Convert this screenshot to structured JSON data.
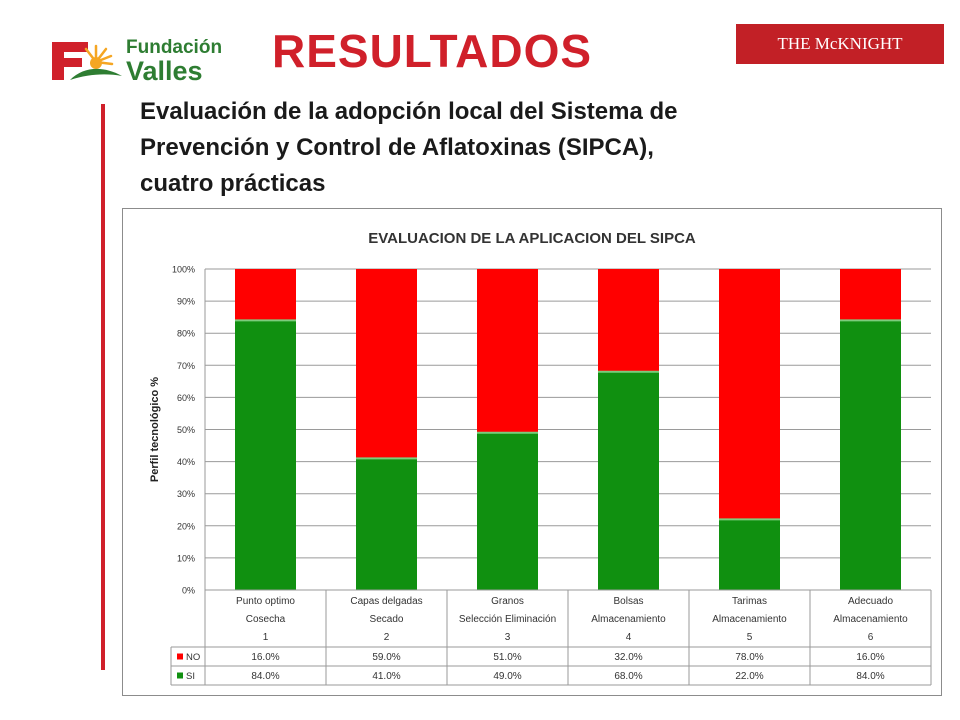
{
  "header": {
    "logo_line1": "Fundación",
    "logo_line2": "Valles",
    "title": "RESULTADOS",
    "partner_logo": "THE McKNIGHT FOUNDATION"
  },
  "subtitle_lines": [
    "Evaluación de la adopción local del Sistema de",
    "Prevención y Control de Aflatoxinas (SIPCA),",
    "cuatro prácticas"
  ],
  "colors": {
    "title_red": "#d0202a",
    "brand_green": "#2e7d32",
    "no_red": "#ff0000",
    "si_green": "#109010"
  },
  "chart_data": {
    "type": "bar",
    "stacked": true,
    "title": "EVALUACION DE LA APLICACION DEL SIPCA",
    "ylabel": "Perfil tecnológico %",
    "ylim": [
      0,
      100
    ],
    "yticks": [
      "0%",
      "10%",
      "20%",
      "30%",
      "40%",
      "50%",
      "60%",
      "70%",
      "80%",
      "90%",
      "100%"
    ],
    "grid": true,
    "categories": [
      [
        "Punto optimo",
        "Cosecha",
        "1"
      ],
      [
        "Capas delgadas",
        "Secado",
        "2"
      ],
      [
        "Granos",
        "Selección Eliminación",
        "3"
      ],
      [
        "Bolsas",
        "Almacenamiento",
        "4"
      ],
      [
        "Tarimas",
        "Almacenamiento",
        "5"
      ],
      [
        "Adecuado",
        "Almacenamiento",
        "6"
      ]
    ],
    "series": [
      {
        "name": "SI",
        "color": "#109010",
        "values": [
          84.0,
          41.0,
          49.0,
          68.0,
          22.0,
          84.0
        ],
        "labels": [
          "84.0%",
          "41.0%",
          "49.0%",
          "68.0%",
          "22.0%",
          "84.0%"
        ]
      },
      {
        "name": "NO",
        "color": "#ff0000",
        "values": [
          16.0,
          59.0,
          51.0,
          32.0,
          78.0,
          16.0
        ],
        "labels": [
          "16.0%",
          "59.0%",
          "51.0%",
          "32.0%",
          "78.0%",
          "16.0%"
        ]
      }
    ],
    "table_row_order": [
      "NO",
      "SI"
    ]
  }
}
